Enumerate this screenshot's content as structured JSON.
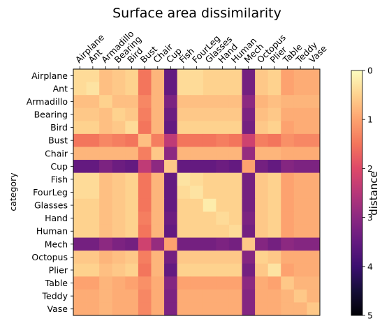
{
  "chart_data": {
    "type": "heatmap",
    "title": "Surface area dissimilarity",
    "ylabel": "category",
    "xlabel": "",
    "categories": [
      "Airplane",
      "Ant",
      "Armadillo",
      "Bearing",
      "Bird",
      "Bust",
      "Chair",
      "Cup",
      "Fish",
      "FourLeg",
      "Glasses",
      "Hand",
      "Human",
      "Mech",
      "Octopus",
      "Plier",
      "Table",
      "Teddy",
      "Vase"
    ],
    "matrix": [
      [
        0.4,
        0.4,
        0.7,
        0.6,
        0.5,
        1.5,
        0.8,
        3.5,
        0.4,
        0.4,
        0.5,
        0.5,
        0.5,
        3.3,
        0.6,
        0.5,
        1.0,
        0.9,
        0.9
      ],
      [
        0.4,
        0.3,
        0.7,
        0.6,
        0.5,
        1.5,
        0.8,
        3.5,
        0.4,
        0.4,
        0.5,
        0.5,
        0.5,
        3.3,
        0.6,
        0.5,
        1.0,
        0.9,
        0.9
      ],
      [
        0.7,
        0.7,
        0.5,
        0.7,
        0.7,
        1.3,
        0.8,
        3.2,
        0.7,
        0.7,
        0.7,
        0.7,
        0.7,
        3.0,
        0.8,
        0.7,
        0.8,
        0.8,
        0.8
      ],
      [
        0.6,
        0.6,
        0.7,
        0.5,
        0.6,
        1.4,
        0.8,
        3.4,
        0.6,
        0.6,
        0.6,
        0.6,
        0.6,
        3.2,
        0.7,
        0.6,
        0.9,
        0.9,
        0.9
      ],
      [
        0.5,
        0.5,
        0.7,
        0.6,
        0.4,
        1.5,
        0.8,
        3.5,
        0.5,
        0.5,
        0.5,
        0.5,
        0.5,
        3.3,
        0.6,
        0.5,
        1.0,
        0.9,
        0.9
      ],
      [
        1.5,
        1.5,
        1.3,
        1.4,
        1.5,
        0.7,
        1.4,
        2.4,
        1.5,
        1.5,
        1.5,
        1.4,
        1.5,
        2.2,
        1.4,
        1.5,
        1.2,
        1.3,
        1.3
      ],
      [
        0.8,
        0.8,
        0.8,
        0.8,
        0.8,
        1.4,
        0.6,
        3.0,
        0.8,
        0.8,
        0.8,
        0.8,
        0.8,
        2.9,
        0.8,
        0.8,
        0.9,
        0.9,
        0.9
      ],
      [
        3.5,
        3.5,
        3.2,
        3.4,
        3.5,
        2.4,
        3.0,
        0.6,
        3.5,
        3.5,
        3.5,
        3.4,
        3.5,
        1.0,
        3.3,
        3.5,
        3.1,
        3.2,
        3.2
      ],
      [
        0.4,
        0.4,
        0.7,
        0.6,
        0.5,
        1.5,
        0.8,
        3.5,
        0.3,
        0.4,
        0.5,
        0.5,
        0.5,
        3.3,
        0.6,
        0.5,
        1.0,
        0.9,
        0.9
      ],
      [
        0.4,
        0.4,
        0.7,
        0.6,
        0.5,
        1.5,
        0.8,
        3.5,
        0.4,
        0.3,
        0.5,
        0.5,
        0.5,
        3.3,
        0.6,
        0.5,
        1.0,
        0.9,
        0.9
      ],
      [
        0.5,
        0.5,
        0.7,
        0.6,
        0.5,
        1.5,
        0.8,
        3.5,
        0.5,
        0.5,
        0.2,
        0.5,
        0.5,
        3.3,
        0.6,
        0.5,
        1.0,
        0.9,
        0.9
      ],
      [
        0.5,
        0.5,
        0.7,
        0.6,
        0.5,
        1.4,
        0.8,
        3.4,
        0.5,
        0.5,
        0.5,
        0.4,
        0.5,
        3.2,
        0.6,
        0.5,
        1.0,
        0.9,
        0.9
      ],
      [
        0.5,
        0.5,
        0.7,
        0.6,
        0.5,
        1.5,
        0.8,
        3.5,
        0.5,
        0.5,
        0.5,
        0.5,
        0.4,
        3.3,
        0.6,
        0.5,
        1.0,
        0.9,
        0.9
      ],
      [
        3.3,
        3.3,
        3.0,
        3.2,
        3.3,
        2.2,
        2.9,
        1.0,
        3.3,
        3.3,
        3.3,
        3.2,
        3.3,
        0.6,
        3.1,
        3.3,
        3.0,
        3.1,
        3.1
      ],
      [
        0.6,
        0.6,
        0.8,
        0.7,
        0.6,
        1.4,
        0.8,
        3.3,
        0.6,
        0.6,
        0.6,
        0.6,
        0.6,
        3.1,
        0.5,
        0.6,
        0.9,
        0.9,
        0.9
      ],
      [
        0.5,
        0.5,
        0.7,
        0.6,
        0.5,
        1.5,
        0.8,
        3.5,
        0.5,
        0.5,
        0.5,
        0.5,
        0.5,
        3.3,
        0.6,
        0.3,
        1.0,
        0.9,
        0.9
      ],
      [
        1.0,
        1.0,
        0.8,
        0.9,
        1.0,
        1.2,
        0.9,
        3.1,
        1.0,
        1.0,
        1.0,
        1.0,
        1.0,
        3.0,
        0.9,
        1.0,
        0.6,
        0.8,
        0.8
      ],
      [
        0.9,
        0.9,
        0.8,
        0.9,
        0.9,
        1.3,
        0.9,
        3.2,
        0.9,
        0.9,
        0.9,
        0.9,
        0.9,
        3.1,
        0.9,
        0.9,
        0.8,
        0.6,
        0.8
      ],
      [
        0.9,
        0.9,
        0.8,
        0.9,
        0.9,
        1.3,
        0.9,
        3.2,
        0.9,
        0.9,
        0.9,
        0.9,
        0.9,
        3.1,
        0.9,
        0.9,
        0.8,
        0.8,
        0.6
      ]
    ],
    "colormap": "magma_r",
    "colorbar": {
      "label": "distance",
      "range": [
        0,
        5
      ],
      "ticks": [
        "0",
        "1",
        "2",
        "3",
        "4",
        "5"
      ]
    },
    "grid": false
  }
}
